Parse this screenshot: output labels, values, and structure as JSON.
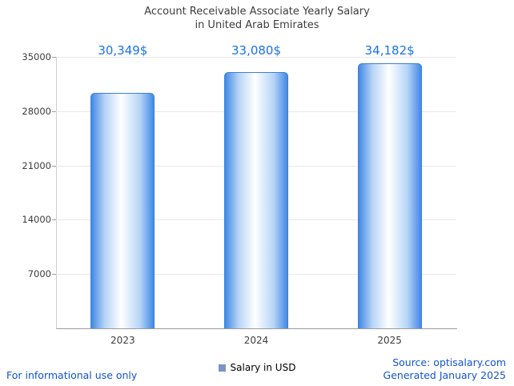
{
  "title": {
    "line1": "Account Receivable Associate Yearly Salary",
    "line2": "in United Arab Emirates"
  },
  "chart_data": {
    "type": "bar",
    "title": "Account Receivable Associate Yearly Salary in United Arab Emirates",
    "categories": [
      "2023",
      "2024",
      "2025"
    ],
    "values": [
      30349,
      33080,
      34182
    ],
    "value_labels": [
      "30,349$",
      "33,080$",
      "34,182$"
    ],
    "series": [
      {
        "name": "Salary in USD",
        "values": [
          30349,
          33080,
          34182
        ]
      }
    ],
    "xlabel": "",
    "ylabel": "",
    "ylim": [
      0,
      35000
    ],
    "yticks": [
      7000,
      14000,
      21000,
      28000,
      35000
    ],
    "grid": true,
    "legend_position": "bottom",
    "legend": [
      {
        "label": "Salary in USD",
        "color": "#7796c5"
      }
    ]
  },
  "colors": {
    "value_label": "#1a73e8",
    "footer_link": "#1155cc",
    "bar_edge": "#4189e4",
    "bar_mid": "#b7d4f7",
    "bar_center": "#ffffff",
    "bar_border": "#3d7fd9",
    "gridline": "#e8e8e8",
    "axis_tick": "#9b9b9b"
  },
  "footer": {
    "disclaimer": "For informational use only",
    "source": "Source: optisalary.com",
    "generated": "Generated January 2025"
  }
}
